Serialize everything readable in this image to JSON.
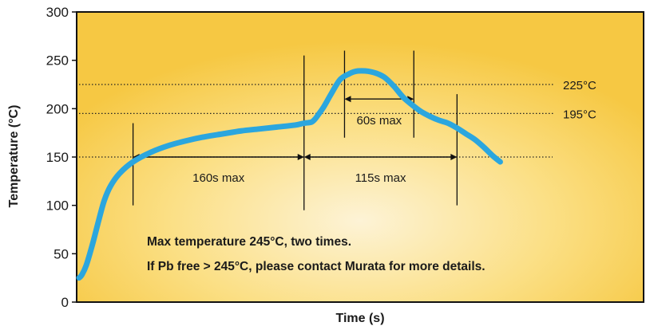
{
  "chart_data": {
    "type": "line",
    "title": "",
    "xlabel": "Time (s)",
    "ylabel": "Temperature (°C)",
    "ylim": [
      0,
      300
    ],
    "yticks": [
      0,
      50,
      100,
      150,
      200,
      250,
      300
    ],
    "grid": false,
    "background": "yellow radial gradient",
    "series": [
      {
        "color": "#2ba6de",
        "x": [
          0,
          3,
          8,
          15,
          22,
          28,
          35,
          45,
          60,
          80,
          100,
          120,
          140,
          160,
          180,
          200,
          220,
          240,
          250,
          258,
          262,
          266,
          272,
          280,
          290,
          300,
          305,
          310,
          318,
          325,
          332,
          340,
          350,
          360,
          370,
          380,
          390,
          400,
          410,
          420,
          430,
          440,
          450,
          460,
          468
        ],
        "y": [
          25,
          28,
          38,
          60,
          85,
          105,
          120,
          133,
          145,
          155,
          162,
          167,
          171,
          174,
          177,
          179,
          181,
          183,
          185,
          186,
          189,
          194,
          202,
          215,
          230,
          236,
          238,
          239,
          239,
          238,
          236,
          232,
          223,
          212,
          204,
          197,
          192,
          188,
          185,
          180,
          174,
          168,
          160,
          151,
          145
        ]
      }
    ],
    "reference_lines": [
      {
        "y": 225,
        "label": "225°C"
      },
      {
        "y": 195,
        "label": "195°C"
      },
      {
        "y": 150,
        "label": ""
      }
    ],
    "annotations": [
      {
        "label": "160s max",
        "x_start": 60,
        "x_end": 250,
        "y": 150
      },
      {
        "label": "115s max",
        "x_start": 250,
        "x_end": 420,
        "y": 150
      },
      {
        "label": "60s max",
        "x_start": 295,
        "x_end": 372,
        "y": 210
      }
    ],
    "markers_x": [
      60,
      250,
      295,
      372,
      420
    ],
    "notes": [
      "Max temperature 245°C, two times.",
      "If Pb free > 245°C, please contact Murata for more details."
    ]
  }
}
